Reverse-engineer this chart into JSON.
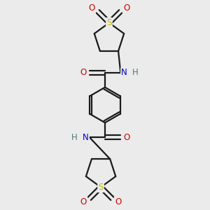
{
  "bg_color": "#ebebeb",
  "bond_color": "#1a1a1a",
  "O_color": "#cc0000",
  "N_color": "#0000cc",
  "S_color": "#bbbb00",
  "H_color": "#557777",
  "lw": 1.6,
  "fs": 8.5,
  "figsize": [
    3.0,
    3.0
  ],
  "dpi": 100,
  "xlim": [
    2.5,
    7.5
  ],
  "ylim": [
    0.5,
    10.5
  ]
}
